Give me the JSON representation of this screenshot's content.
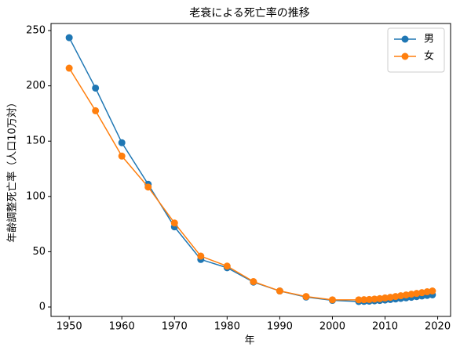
{
  "chart_data": {
    "type": "line",
    "title": "老衰による死亡率の推移",
    "x_label": "年",
    "y_label": "年齢調整死亡率（人口10万対）",
    "x": [
      1950,
      1955,
      1960,
      1965,
      1970,
      1975,
      1980,
      1985,
      1990,
      1995,
      2000,
      2005,
      2006,
      2007,
      2008,
      2009,
      2010,
      2011,
      2012,
      2013,
      2014,
      2015,
      2016,
      2017,
      2018,
      2019
    ],
    "series": [
      {
        "name": "男",
        "color": "#1f77b4",
        "values": [
          243.6,
          198,
          148.6,
          111,
          72.5,
          43,
          35.5,
          22.5,
          14.5,
          9,
          6,
          5,
          5.1,
          5.3,
          5.6,
          5.9,
          6.3,
          6.8,
          7.3,
          7.8,
          8.3,
          8.8,
          9.4,
          10,
          10.5,
          11
        ]
      },
      {
        "name": "女",
        "color": "#ff7f0e",
        "values": [
          216,
          177.5,
          136.5,
          108.5,
          76,
          46,
          37,
          23,
          14.5,
          9.5,
          6.5,
          6.5,
          6.6,
          6.8,
          7.2,
          7.6,
          8.2,
          8.8,
          9.5,
          10.2,
          10.9,
          11.6,
          12.3,
          13,
          13.8,
          14.5
        ]
      }
    ],
    "xlim": [
      1946.55,
      2022.45
    ],
    "xticks": [
      1950,
      1960,
      1970,
      1980,
      1990,
      2000,
      2010,
      2020
    ],
    "ylim": [
      -8.5,
      256.4
    ],
    "yticks": [
      0,
      50,
      100,
      150,
      200,
      250
    ],
    "grid": false,
    "legend": "upper right"
  }
}
